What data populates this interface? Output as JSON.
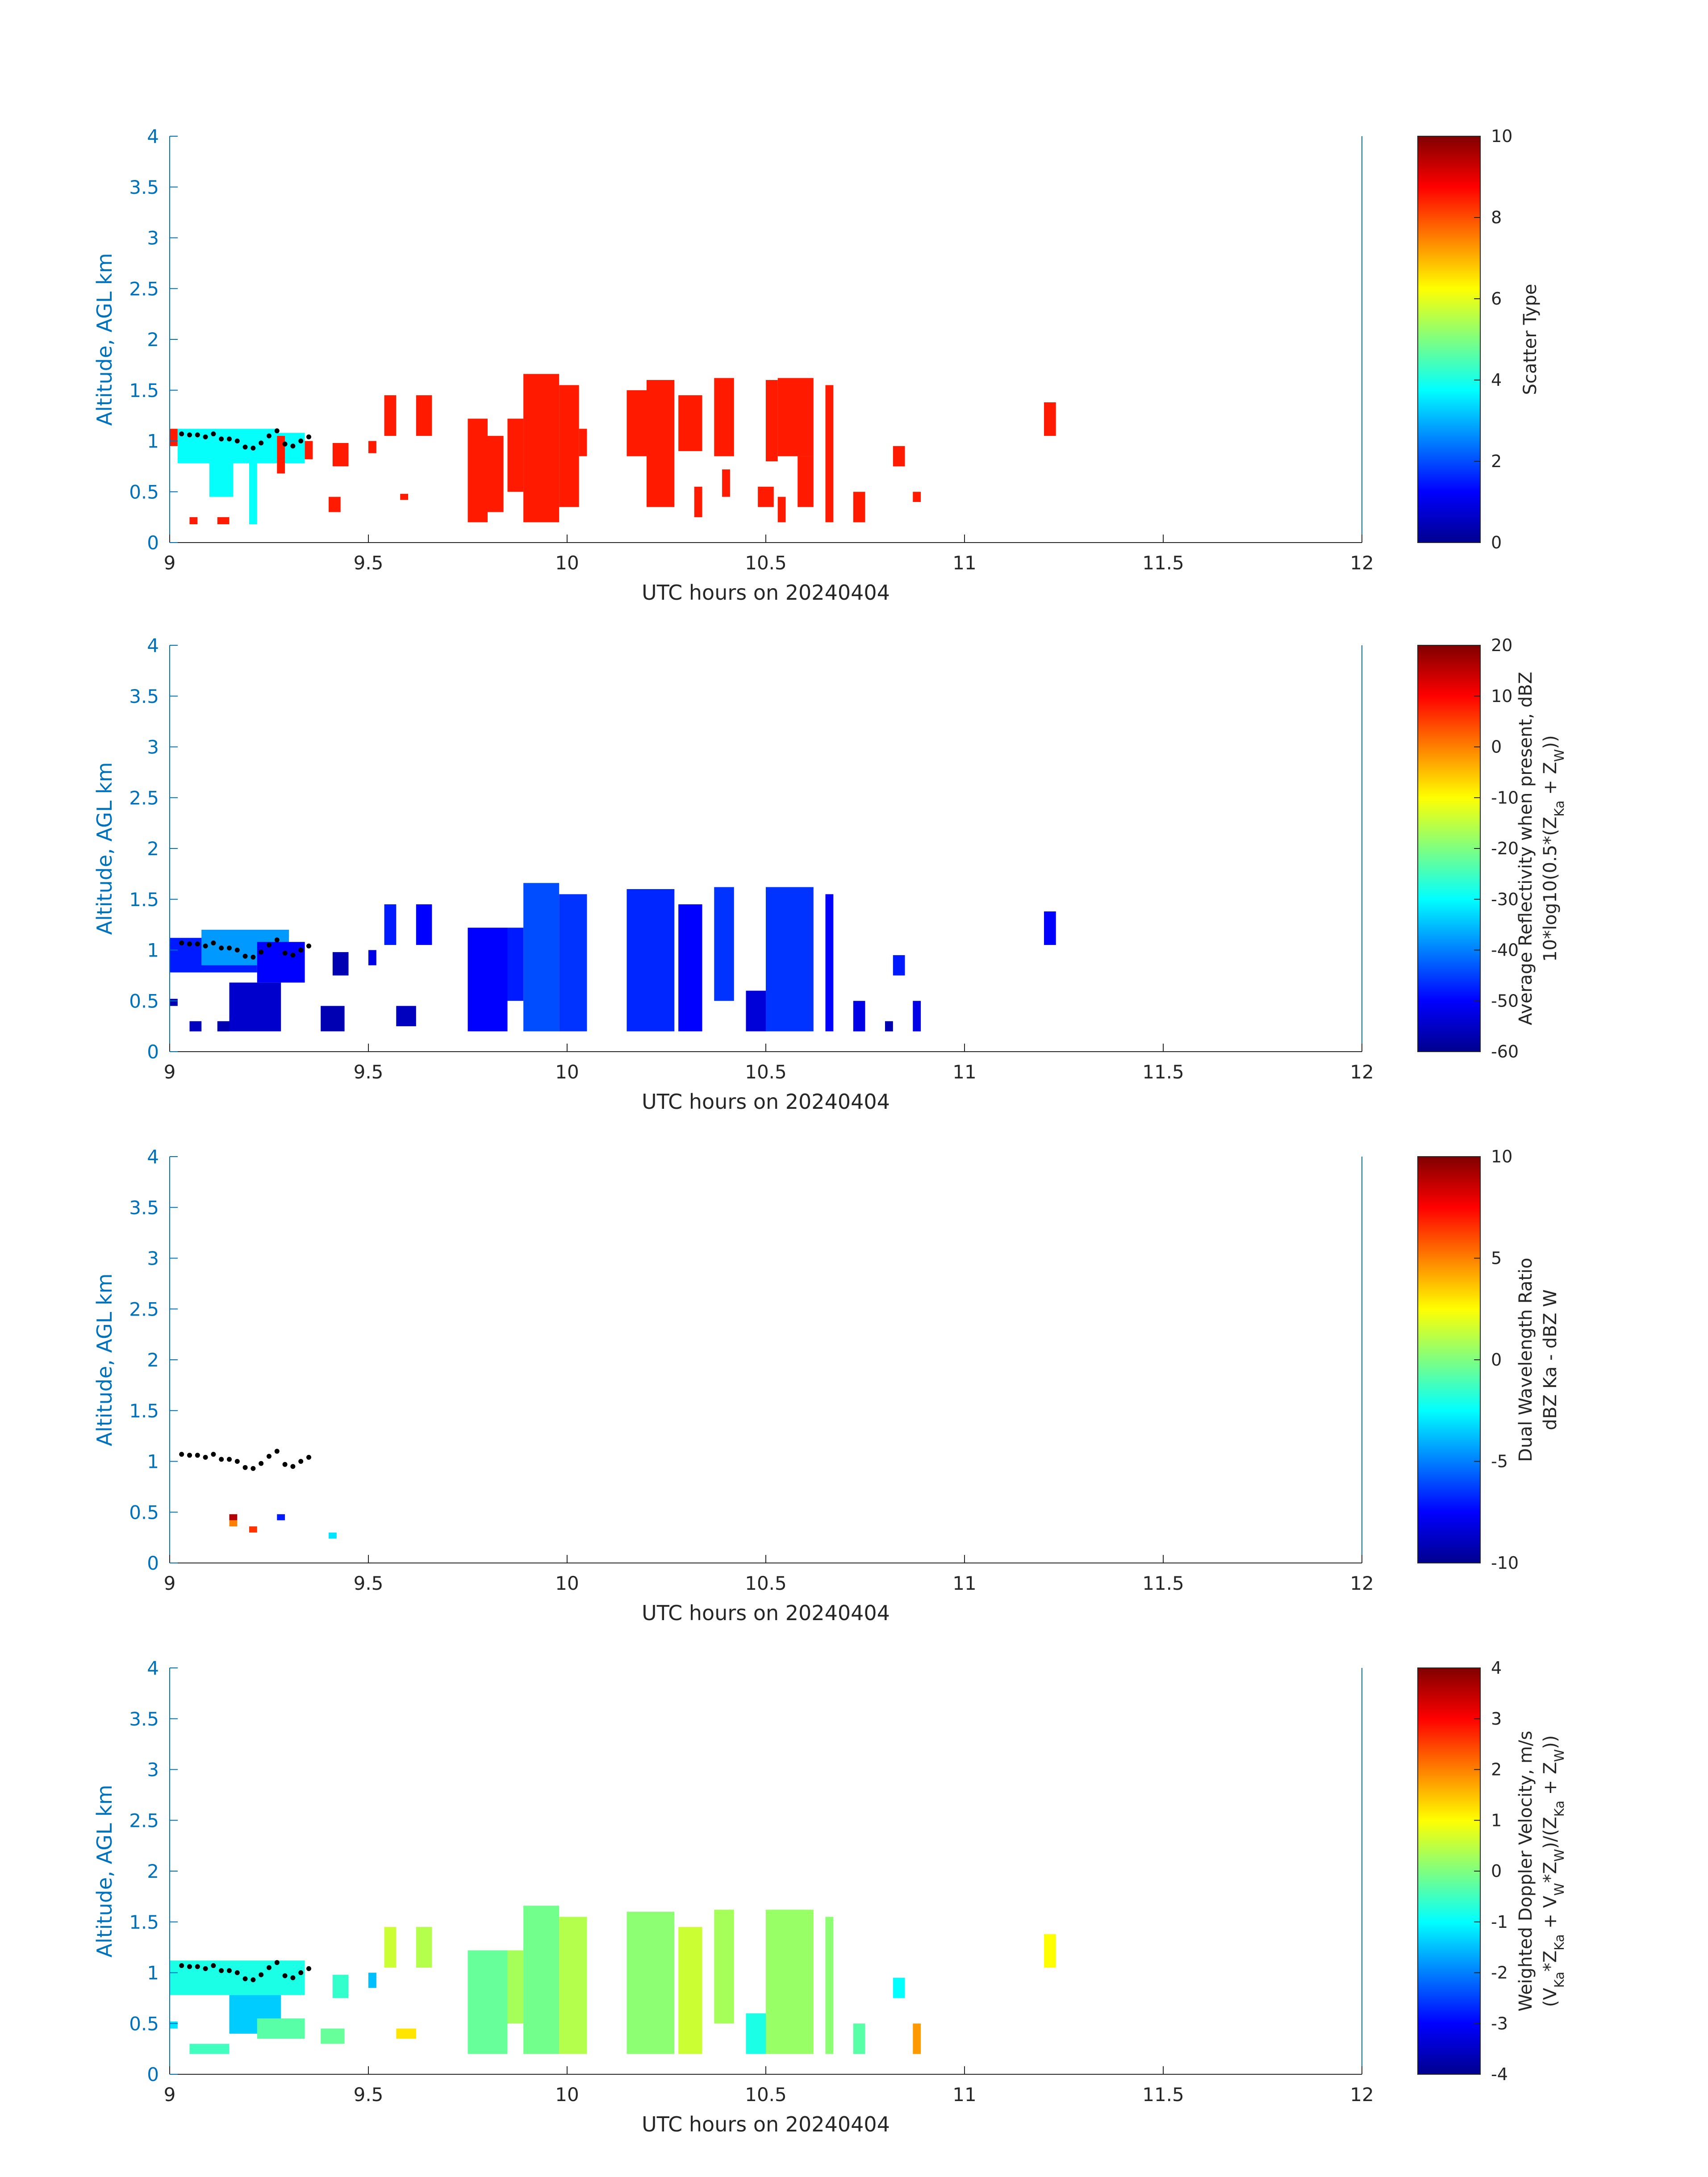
{
  "figure": {
    "date_label": "UTC hours on 20240404"
  },
  "chart_data": [
    {
      "type": "heatmap",
      "xlabel": "UTC hours on 20240404",
      "ylabel": "Altitude, AGL km",
      "xlim": [
        9,
        12
      ],
      "ylim": [
        0,
        4
      ],
      "xticks": [
        "9",
        "9.5",
        "10",
        "10.5",
        "11",
        "11.5",
        "12"
      ],
      "yticks": [
        "0",
        "0.5",
        "1",
        "1.5",
        "2",
        "2.5",
        "3",
        "3.5",
        "4"
      ],
      "colorbar": {
        "label_lines": [
          "Scatter Type"
        ],
        "clim": [
          0,
          10
        ],
        "ticks": [
          "0",
          "2",
          "4",
          "6",
          "8",
          "10"
        ]
      },
      "cells": [
        {
          "x0": 9.0,
          "x1": 9.02,
          "y0": 0.95,
          "y1": 1.12,
          "v": 8.5
        },
        {
          "x0": 9.02,
          "x1": 9.27,
          "y0": 0.78,
          "y1": 1.12,
          "v": 3.8
        },
        {
          "x0": 9.27,
          "x1": 9.34,
          "y0": 0.78,
          "y1": 1.08,
          "v": 3.8
        },
        {
          "x0": 9.1,
          "x1": 9.16,
          "y0": 0.45,
          "y1": 0.78,
          "v": 3.8
        },
        {
          "x0": 9.2,
          "x1": 9.22,
          "y0": 0.18,
          "y1": 0.78,
          "v": 3.8
        },
        {
          "x0": 9.27,
          "x1": 9.29,
          "y0": 0.68,
          "y1": 1.05,
          "v": 8.5
        },
        {
          "x0": 9.05,
          "x1": 9.07,
          "y0": 0.18,
          "y1": 0.25,
          "v": 8.5
        },
        {
          "x0": 9.12,
          "x1": 9.15,
          "y0": 0.18,
          "y1": 0.25,
          "v": 8.5
        },
        {
          "x0": 9.34,
          "x1": 9.36,
          "y0": 0.82,
          "y1": 1.0,
          "v": 8.5
        },
        {
          "x0": 9.41,
          "x1": 9.45,
          "y0": 0.75,
          "y1": 0.98,
          "v": 8.5
        },
        {
          "x0": 9.4,
          "x1": 9.43,
          "y0": 0.3,
          "y1": 0.45,
          "v": 8.5
        },
        {
          "x0": 9.5,
          "x1": 9.52,
          "y0": 0.88,
          "y1": 1.0,
          "v": 8.5
        },
        {
          "x0": 9.54,
          "x1": 9.57,
          "y0": 1.05,
          "y1": 1.45,
          "v": 8.5
        },
        {
          "x0": 9.58,
          "x1": 9.6,
          "y0": 0.42,
          "y1": 0.48,
          "v": 8.5
        },
        {
          "x0": 9.62,
          "x1": 9.66,
          "y0": 1.05,
          "y1": 1.45,
          "v": 8.5
        },
        {
          "x0": 9.75,
          "x1": 9.8,
          "y0": 0.2,
          "y1": 1.22,
          "v": 8.5
        },
        {
          "x0": 9.8,
          "x1": 9.84,
          "y0": 0.3,
          "y1": 1.05,
          "v": 8.5
        },
        {
          "x0": 9.85,
          "x1": 9.89,
          "y0": 0.5,
          "y1": 1.22,
          "v": 8.5
        },
        {
          "x0": 9.89,
          "x1": 9.98,
          "y0": 0.2,
          "y1": 1.66,
          "v": 8.5
        },
        {
          "x0": 9.98,
          "x1": 10.03,
          "y0": 0.35,
          "y1": 1.55,
          "v": 8.5
        },
        {
          "x0": 10.03,
          "x1": 10.05,
          "y0": 0.85,
          "y1": 1.12,
          "v": 8.5
        },
        {
          "x0": 10.15,
          "x1": 10.2,
          "y0": 0.85,
          "y1": 1.5,
          "v": 8.5
        },
        {
          "x0": 10.2,
          "x1": 10.27,
          "y0": 0.35,
          "y1": 1.6,
          "v": 8.5
        },
        {
          "x0": 10.28,
          "x1": 10.34,
          "y0": 0.9,
          "y1": 1.45,
          "v": 8.5
        },
        {
          "x0": 10.32,
          "x1": 10.34,
          "y0": 0.25,
          "y1": 0.55,
          "v": 8.5
        },
        {
          "x0": 10.37,
          "x1": 10.42,
          "y0": 0.85,
          "y1": 1.62,
          "v": 8.5
        },
        {
          "x0": 10.39,
          "x1": 10.41,
          "y0": 0.45,
          "y1": 0.72,
          "v": 8.5
        },
        {
          "x0": 10.5,
          "x1": 10.53,
          "y0": 0.8,
          "y1": 1.6,
          "v": 8.5
        },
        {
          "x0": 10.53,
          "x1": 10.62,
          "y0": 0.85,
          "y1": 1.62,
          "v": 8.5
        },
        {
          "x0": 10.58,
          "x1": 10.62,
          "y0": 0.35,
          "y1": 0.85,
          "v": 8.5
        },
        {
          "x0": 10.48,
          "x1": 10.52,
          "y0": 0.35,
          "y1": 0.55,
          "v": 8.5
        },
        {
          "x0": 10.53,
          "x1": 10.55,
          "y0": 0.2,
          "y1": 0.45,
          "v": 8.5
        },
        {
          "x0": 10.65,
          "x1": 10.67,
          "y0": 0.2,
          "y1": 1.55,
          "v": 8.5
        },
        {
          "x0": 10.72,
          "x1": 10.75,
          "y0": 0.2,
          "y1": 0.5,
          "v": 8.5
        },
        {
          "x0": 10.82,
          "x1": 10.85,
          "y0": 0.75,
          "y1": 0.95,
          "v": 8.5
        },
        {
          "x0": 10.87,
          "x1": 10.89,
          "y0": 0.4,
          "y1": 0.5,
          "v": 8.5
        },
        {
          "x0": 11.2,
          "x1": 11.23,
          "y0": 1.05,
          "y1": 1.38,
          "v": 8.5
        }
      ]
    },
    {
      "type": "heatmap",
      "xlabel": "UTC hours on 20240404",
      "ylabel": "Altitude, AGL km",
      "xlim": [
        9,
        12
      ],
      "ylim": [
        0,
        4
      ],
      "xticks": [
        "9",
        "9.5",
        "10",
        "10.5",
        "11",
        "11.5",
        "12"
      ],
      "yticks": [
        "0",
        "0.5",
        "1",
        "1.5",
        "2",
        "2.5",
        "3",
        "3.5",
        "4"
      ],
      "colorbar": {
        "label_lines": [
          "Average Reflectivity when present, dBZ",
          "10*log10(0.5*(Z_Ka + Z_W))"
        ],
        "clim": [
          -60,
          20
        ],
        "ticks": [
          "-60",
          "-50",
          "-40",
          "-30",
          "-20",
          "-10",
          "0",
          "10",
          "20"
        ]
      },
      "cells": [
        {
          "x0": 9.0,
          "x1": 9.22,
          "y0": 0.78,
          "y1": 1.12,
          "v": -48
        },
        {
          "x0": 9.08,
          "x1": 9.3,
          "y0": 0.85,
          "y1": 1.2,
          "v": -38
        },
        {
          "x0": 9.22,
          "x1": 9.34,
          "y0": 0.68,
          "y1": 1.08,
          "v": -50
        },
        {
          "x0": 9.15,
          "x1": 9.28,
          "y0": 0.2,
          "y1": 0.68,
          "v": -54
        },
        {
          "x0": 9.05,
          "x1": 9.08,
          "y0": 0.2,
          "y1": 0.3,
          "v": -55
        },
        {
          "x0": 9.12,
          "x1": 9.15,
          "y0": 0.2,
          "y1": 0.3,
          "v": -56
        },
        {
          "x0": 9.0,
          "x1": 9.02,
          "y0": 0.45,
          "y1": 0.52,
          "v": -56
        },
        {
          "x0": 9.41,
          "x1": 9.45,
          "y0": 0.75,
          "y1": 0.98,
          "v": -56
        },
        {
          "x0": 9.38,
          "x1": 9.44,
          "y0": 0.2,
          "y1": 0.45,
          "v": -56
        },
        {
          "x0": 9.5,
          "x1": 9.52,
          "y0": 0.85,
          "y1": 1.0,
          "v": -52
        },
        {
          "x0": 9.54,
          "x1": 9.57,
          "y0": 1.05,
          "y1": 1.45,
          "v": -48
        },
        {
          "x0": 9.57,
          "x1": 9.62,
          "y0": 0.25,
          "y1": 0.45,
          "v": -55
        },
        {
          "x0": 9.62,
          "x1": 9.66,
          "y0": 1.05,
          "y1": 1.45,
          "v": -50
        },
        {
          "x0": 9.75,
          "x1": 9.85,
          "y0": 0.2,
          "y1": 1.22,
          "v": -50
        },
        {
          "x0": 9.85,
          "x1": 9.89,
          "y0": 0.5,
          "y1": 1.22,
          "v": -48
        },
        {
          "x0": 9.89,
          "x1": 9.98,
          "y0": 0.2,
          "y1": 1.66,
          "v": -44
        },
        {
          "x0": 9.98,
          "x1": 10.05,
          "y0": 0.2,
          "y1": 1.55,
          "v": -46
        },
        {
          "x0": 10.15,
          "x1": 10.27,
          "y0": 0.2,
          "y1": 1.6,
          "v": -47
        },
        {
          "x0": 10.28,
          "x1": 10.34,
          "y0": 0.2,
          "y1": 1.45,
          "v": -50
        },
        {
          "x0": 10.37,
          "x1": 10.42,
          "y0": 0.5,
          "y1": 1.62,
          "v": -46
        },
        {
          "x0": 10.45,
          "x1": 10.52,
          "y0": 0.2,
          "y1": 0.6,
          "v": -53
        },
        {
          "x0": 10.5,
          "x1": 10.62,
          "y0": 0.2,
          "y1": 1.62,
          "v": -46
        },
        {
          "x0": 10.65,
          "x1": 10.67,
          "y0": 0.2,
          "y1": 1.55,
          "v": -50
        },
        {
          "x0": 10.72,
          "x1": 10.75,
          "y0": 0.2,
          "y1": 0.5,
          "v": -52
        },
        {
          "x0": 10.82,
          "x1": 10.85,
          "y0": 0.75,
          "y1": 0.95,
          "v": -48
        },
        {
          "x0": 10.8,
          "x1": 10.82,
          "y0": 0.2,
          "y1": 0.3,
          "v": -56
        },
        {
          "x0": 10.87,
          "x1": 10.89,
          "y0": 0.2,
          "y1": 0.5,
          "v": -52
        },
        {
          "x0": 11.2,
          "x1": 11.23,
          "y0": 1.05,
          "y1": 1.38,
          "v": -50
        }
      ]
    },
    {
      "type": "heatmap",
      "xlabel": "UTC hours on 20240404",
      "ylabel": "Altitude, AGL km",
      "xlim": [
        9,
        12
      ],
      "ylim": [
        0,
        4
      ],
      "xticks": [
        "9",
        "9.5",
        "10",
        "10.5",
        "11",
        "11.5",
        "12"
      ],
      "yticks": [
        "0",
        "0.5",
        "1",
        "1.5",
        "2",
        "2.5",
        "3",
        "3.5",
        "4"
      ],
      "colorbar": {
        "label_lines": [
          "Dual Wavelength Ratio",
          "dBZ Ka - dBZ W"
        ],
        "clim": [
          -10,
          10
        ],
        "ticks": [
          "-10",
          "-5",
          "0",
          "5",
          "10"
        ]
      },
      "cells": [
        {
          "x0": 9.15,
          "x1": 9.17,
          "y0": 0.42,
          "y1": 0.48,
          "v": 9
        },
        {
          "x0": 9.15,
          "x1": 9.17,
          "y0": 0.36,
          "y1": 0.42,
          "v": 5
        },
        {
          "x0": 9.2,
          "x1": 9.22,
          "y0": 0.3,
          "y1": 0.36,
          "v": 6.5
        },
        {
          "x0": 9.27,
          "x1": 9.29,
          "y0": 0.42,
          "y1": 0.48,
          "v": -7
        },
        {
          "x0": 9.4,
          "x1": 9.42,
          "y0": 0.24,
          "y1": 0.3,
          "v": -3
        }
      ]
    },
    {
      "type": "heatmap",
      "xlabel": "UTC hours on 20240404",
      "ylabel": "Altitude, AGL km",
      "xlim": [
        9,
        12
      ],
      "ylim": [
        0,
        4
      ],
      "xticks": [
        "9",
        "9.5",
        "10",
        "10.5",
        "11",
        "11.5",
        "12"
      ],
      "yticks": [
        "0",
        "0.5",
        "1",
        "1.5",
        "2",
        "2.5",
        "3",
        "3.5",
        "4"
      ],
      "colorbar": {
        "label_lines": [
          "Weighted Doppler Velocity, m/s",
          "(V_Ka*Z_Ka + V_W*Z_W)/(Z_Ka + Z_W))"
        ],
        "clim": [
          -4,
          4
        ],
        "ticks": [
          "-4",
          "-3",
          "-2",
          "-1",
          "0",
          "1",
          "2",
          "3",
          "4"
        ]
      },
      "cells": [
        {
          "x0": 9.0,
          "x1": 9.34,
          "y0": 0.78,
          "y1": 1.12,
          "v": -0.8
        },
        {
          "x0": 9.15,
          "x1": 9.28,
          "y0": 0.4,
          "y1": 0.78,
          "v": -1.4
        },
        {
          "x0": 9.05,
          "x1": 9.15,
          "y0": 0.2,
          "y1": 0.3,
          "v": -0.5
        },
        {
          "x0": 9.0,
          "x1": 9.02,
          "y0": 0.45,
          "y1": 0.52,
          "v": -1.2
        },
        {
          "x0": 9.22,
          "x1": 9.34,
          "y0": 0.35,
          "y1": 0.55,
          "v": -0.3
        },
        {
          "x0": 9.38,
          "x1": 9.44,
          "y0": 0.3,
          "y1": 0.45,
          "v": -0.2
        },
        {
          "x0": 9.41,
          "x1": 9.45,
          "y0": 0.75,
          "y1": 0.98,
          "v": -0.6
        },
        {
          "x0": 9.5,
          "x1": 9.52,
          "y0": 0.85,
          "y1": 1.0,
          "v": -1.5
        },
        {
          "x0": 9.54,
          "x1": 9.57,
          "y0": 1.05,
          "y1": 1.45,
          "v": 0.6
        },
        {
          "x0": 9.57,
          "x1": 9.62,
          "y0": 0.35,
          "y1": 0.45,
          "v": 1.2
        },
        {
          "x0": 9.62,
          "x1": 9.66,
          "y0": 1.05,
          "y1": 1.45,
          "v": 0.4
        },
        {
          "x0": 9.75,
          "x1": 9.85,
          "y0": 0.2,
          "y1": 1.22,
          "v": -0.2
        },
        {
          "x0": 9.85,
          "x1": 9.89,
          "y0": 0.5,
          "y1": 1.22,
          "v": 0.3
        },
        {
          "x0": 9.89,
          "x1": 9.98,
          "y0": 0.2,
          "y1": 1.66,
          "v": -0.1
        },
        {
          "x0": 9.98,
          "x1": 10.05,
          "y0": 0.2,
          "y1": 1.55,
          "v": 0.4
        },
        {
          "x0": 10.15,
          "x1": 10.27,
          "y0": 0.2,
          "y1": 1.6,
          "v": 0.1
        },
        {
          "x0": 10.28,
          "x1": 10.34,
          "y0": 0.2,
          "y1": 1.45,
          "v": 0.6
        },
        {
          "x0": 10.37,
          "x1": 10.42,
          "y0": 0.5,
          "y1": 1.62,
          "v": 0.3
        },
        {
          "x0": 10.45,
          "x1": 10.52,
          "y0": 0.2,
          "y1": 0.6,
          "v": -0.8
        },
        {
          "x0": 10.5,
          "x1": 10.62,
          "y0": 0.2,
          "y1": 1.62,
          "v": 0.2
        },
        {
          "x0": 10.65,
          "x1": 10.67,
          "y0": 0.2,
          "y1": 1.55,
          "v": 0.1
        },
        {
          "x0": 10.72,
          "x1": 10.75,
          "y0": 0.2,
          "y1": 0.5,
          "v": -0.3
        },
        {
          "x0": 10.82,
          "x1": 10.85,
          "y0": 0.75,
          "y1": 0.95,
          "v": -1.0
        },
        {
          "x0": 10.87,
          "x1": 10.89,
          "y0": 0.2,
          "y1": 0.5,
          "v": 1.8
        },
        {
          "x0": 11.2,
          "x1": 11.23,
          "y0": 1.05,
          "y1": 1.38,
          "v": 1.0
        }
      ]
    }
  ],
  "overlay_dots": {
    "color": "#000000",
    "points": [
      [
        9.03,
        1.07
      ],
      [
        9.05,
        1.06
      ],
      [
        9.07,
        1.06
      ],
      [
        9.09,
        1.04
      ],
      [
        9.11,
        1.07
      ],
      [
        9.13,
        1.02
      ],
      [
        9.15,
        1.02
      ],
      [
        9.17,
        1.0
      ],
      [
        9.19,
        0.94
      ],
      [
        9.21,
        0.93
      ],
      [
        9.23,
        0.98
      ],
      [
        9.25,
        1.05
      ],
      [
        9.27,
        1.1
      ],
      [
        9.29,
        0.97
      ],
      [
        9.31,
        0.95
      ],
      [
        9.33,
        1.0
      ],
      [
        9.35,
        1.04
      ]
    ],
    "panels": [
      0,
      1,
      2,
      3
    ]
  }
}
